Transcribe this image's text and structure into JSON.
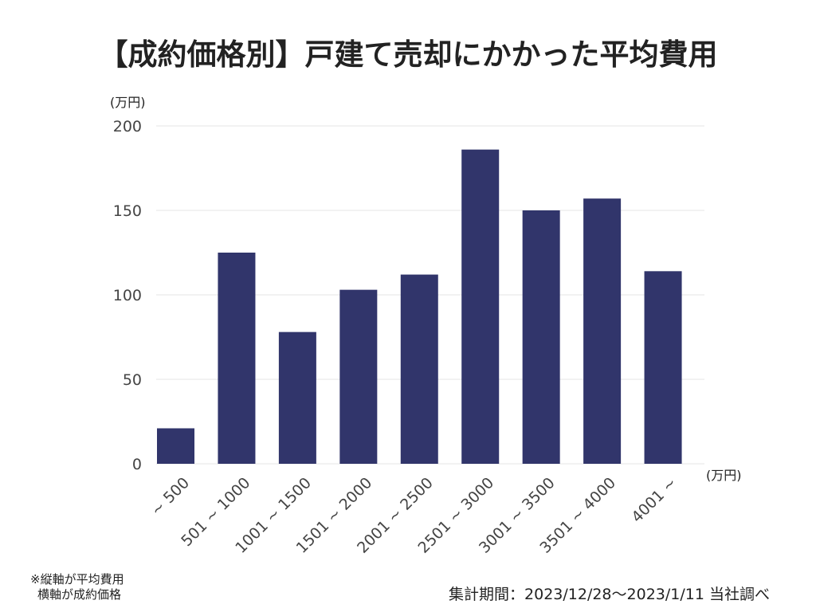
{
  "chart_data": {
    "type": "bar",
    "title": "【成約価格別】戸建て売却にかかった平均費用",
    "ylabel": "(万円)",
    "xlabel": "(万円)",
    "ylim": [
      0,
      200
    ],
    "yticks": [
      0,
      50,
      100,
      150,
      200
    ],
    "grid": true,
    "categories": [
      "~ 500",
      "501 ~ 1000",
      "1001 ~ 1500",
      "1501 ~ 2000",
      "2001 ~ 2500",
      "2501 ~ 3000",
      "3001 ~ 3500",
      "3501 ~ 4000",
      "4001 ~"
    ],
    "values": [
      21,
      125,
      78,
      103,
      112,
      186,
      150,
      157,
      114
    ],
    "bar_color": "#31356b",
    "grid_color": "#e6e6e6"
  },
  "note": {
    "line1": "※縦軸が平均費用",
    "line2": "横軸が成約価格"
  },
  "source": "集計期間：2023/12/28〜2023/1/11 当社調べ"
}
